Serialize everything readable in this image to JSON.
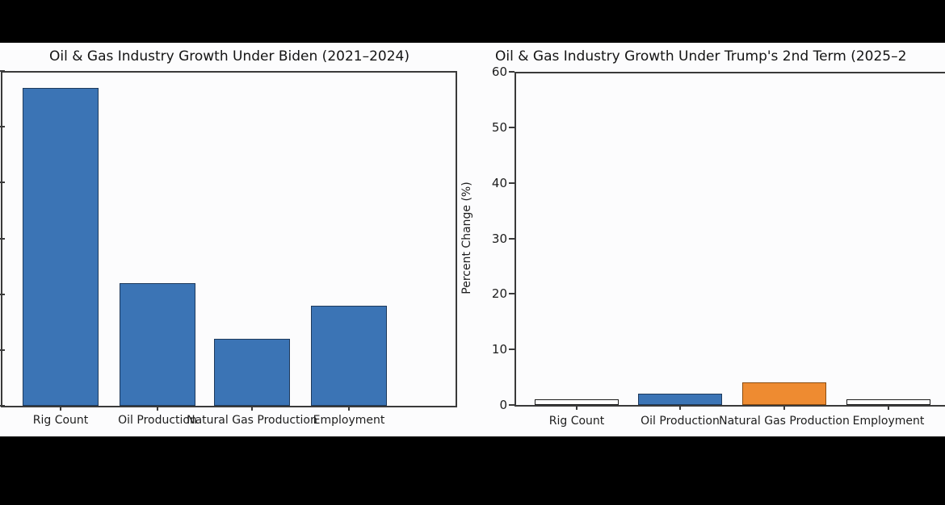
{
  "frame": {
    "background_color": "#000000",
    "figure_background_color": "#fcfcfd",
    "axis_color": "#3a3a3a",
    "text_color": "#1d1d1d"
  },
  "chart_data": [
    {
      "type": "bar",
      "title": "Oil & Gas Industry Growth Under Biden (2021–2024)",
      "categories": [
        "Rig Count",
        "Oil Production",
        "Natural Gas Production",
        "Employment"
      ],
      "values": [
        57,
        22,
        12,
        18
      ],
      "bar_colors": [
        "#3b74b5",
        "#3b74b5",
        "#3b74b5",
        "#3b74b5"
      ],
      "bar_edge_colors": [
        "#1e3a5c",
        "#1e3a5c",
        "#1e3a5c",
        "#1e3a5c"
      ],
      "ylabel": "",
      "ylim": [
        0,
        60
      ],
      "yticks": [
        0,
        10,
        20,
        30,
        40,
        50,
        60
      ],
      "ytick_labels_visible": false,
      "grid": false,
      "legend_position": "none"
    },
    {
      "type": "bar",
      "title": "Oil & Gas Industry Growth Under Trump's 2nd Term (2025–2",
      "categories": [
        "Rig Count",
        "Oil Production",
        "Natural Gas Production",
        "Employment"
      ],
      "values": [
        1,
        2,
        4,
        1
      ],
      "bar_colors": [
        "#ffffff",
        "#3b74b5",
        "#ee8b31",
        "#ffffff"
      ],
      "bar_edge_colors": [
        "#1c1c1c",
        "#1e3a5c",
        "#8a4c10",
        "#1c1c1c"
      ],
      "ylabel": "Percent Change (%)",
      "ylim": [
        0,
        60
      ],
      "yticks": [
        0,
        10,
        20,
        30,
        40,
        50,
        60
      ],
      "ytick_labels_visible": true,
      "grid": false,
      "legend_position": "none"
    }
  ]
}
